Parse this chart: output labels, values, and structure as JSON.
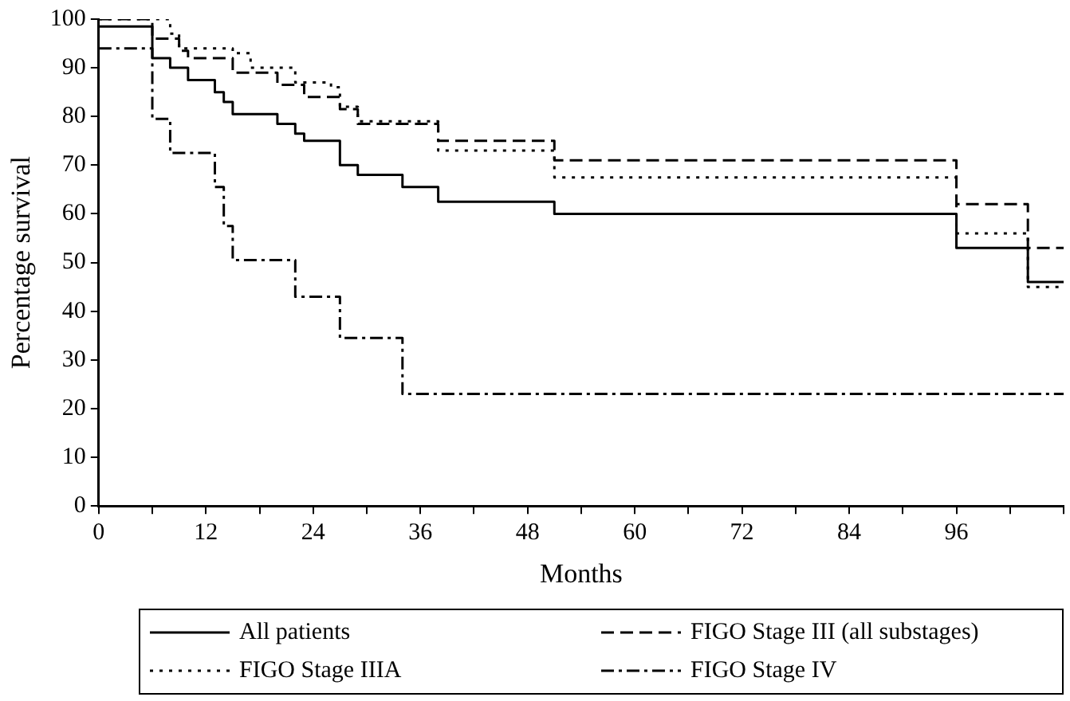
{
  "chart_data": {
    "type": "step",
    "xlabel": "Months",
    "ylabel": "Percentage survival",
    "xlim": [
      0,
      108
    ],
    "ylim": [
      0,
      100
    ],
    "xticks": [
      0,
      {
        "value": 6,
        "label": null
      },
      12,
      {
        "value": 18,
        "label": null
      },
      24,
      {
        "value": 30,
        "label": null
      },
      36,
      {
        "value": 42,
        "label": null
      },
      48,
      {
        "value": 54,
        "label": null
      },
      60,
      {
        "value": 66,
        "label": null
      },
      72,
      {
        "value": 78,
        "label": null
      },
      84,
      {
        "value": 90,
        "label": null
      },
      96,
      {
        "value": 102,
        "label": null
      },
      {
        "value": 108,
        "label": null
      }
    ],
    "yticks": [
      0,
      10,
      20,
      30,
      40,
      50,
      60,
      70,
      80,
      90,
      100
    ],
    "grid": false,
    "legend": "bottom",
    "marker": "none",
    "series": [
      {
        "name": "All patients",
        "color": "#000000",
        "line_style": "solid",
        "x": [
          0,
          6,
          8,
          10,
          13,
          14,
          15,
          20,
          22,
          23,
          27,
          29,
          34,
          38,
          51,
          96,
          104,
          108
        ],
        "values": [
          98.5,
          92,
          90,
          87.5,
          85,
          83,
          80.5,
          78.5,
          76.5,
          75,
          70,
          68,
          65.5,
          62.5,
          60,
          53,
          46,
          46
        ]
      },
      {
        "name": "FIGO Stage III (all substages)",
        "color": "#000000",
        "line_style": "dashed",
        "x": [
          0,
          6,
          9,
          10,
          15,
          20,
          23,
          27,
          29,
          38,
          51,
          96,
          104,
          108
        ],
        "values": [
          100,
          96,
          93.5,
          92,
          89,
          86.5,
          84,
          81.5,
          78.5,
          75,
          71,
          62,
          53,
          53
        ]
      },
      {
        "name": "FIGO Stage IIIA",
        "color": "#000000",
        "line_style": "dotted",
        "x": [
          0,
          8,
          9,
          15,
          17,
          22,
          26,
          27,
          29,
          38,
          51,
          96,
          104,
          108
        ],
        "values": [
          100,
          97,
          94,
          93,
          90,
          87,
          86,
          82,
          79,
          73,
          67.5,
          56,
          45,
          45
        ]
      },
      {
        "name": "FIGO Stage IV",
        "color": "#000000",
        "line_style": "dashdot",
        "x": [
          0,
          6,
          8,
          13,
          14,
          15,
          22,
          27,
          34,
          108
        ],
        "values": [
          94,
          79.5,
          72.5,
          65.5,
          57.5,
          50.5,
          43,
          34.5,
          23,
          23
        ]
      }
    ]
  }
}
